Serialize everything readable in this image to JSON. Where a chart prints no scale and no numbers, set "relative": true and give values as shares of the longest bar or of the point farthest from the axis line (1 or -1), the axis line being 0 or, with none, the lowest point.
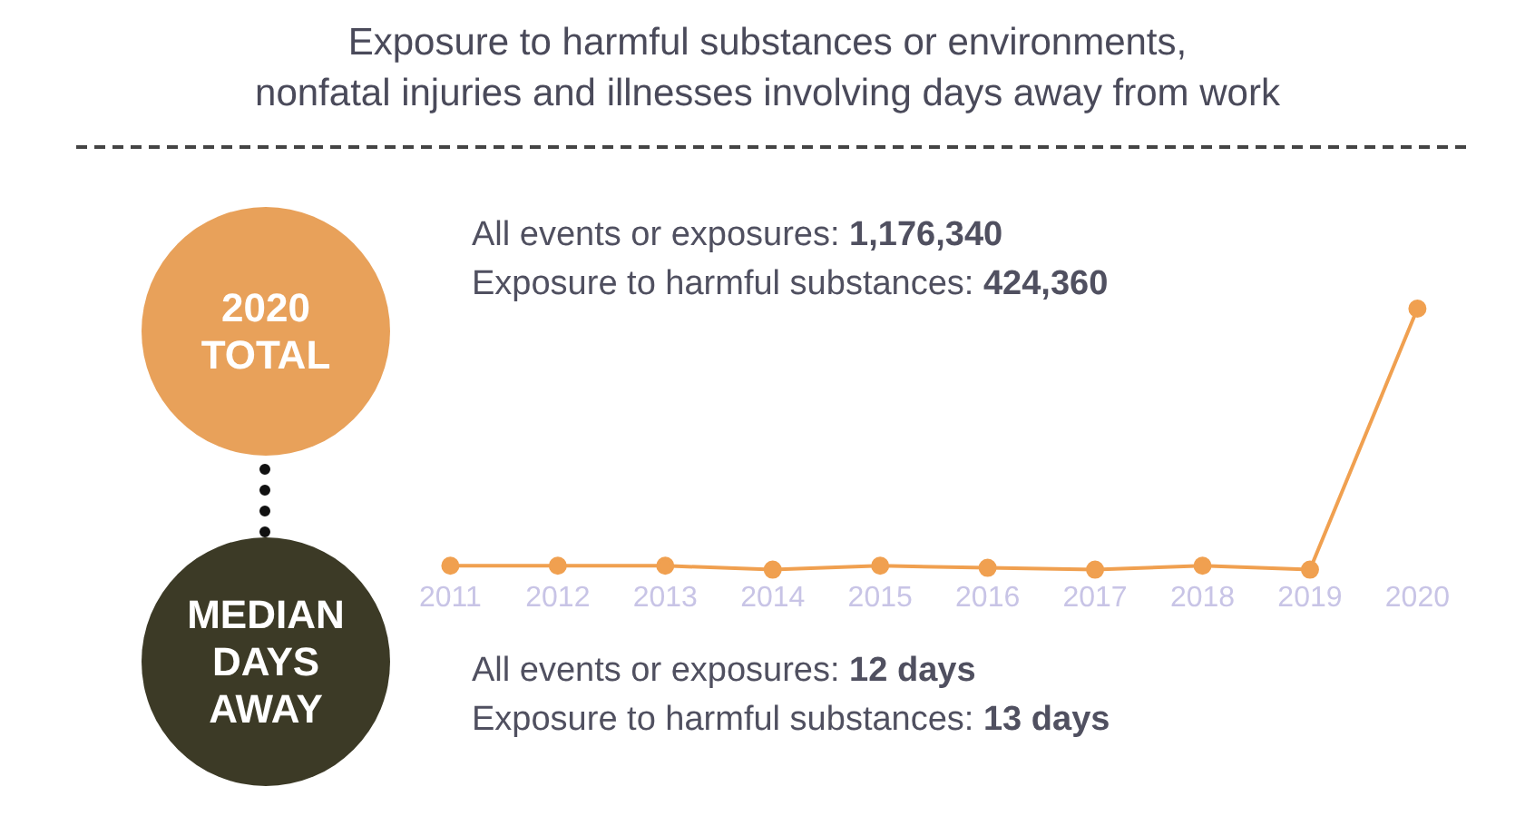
{
  "chart_data": {
    "type": "line",
    "title": "Exposure to harmful substances or environments,\nnonfatal injuries and illnesses involving days away from work",
    "categories": [
      "2011",
      "2012",
      "2013",
      "2014",
      "2015",
      "2016",
      "2017",
      "2018",
      "2019",
      "2020"
    ],
    "relative": true,
    "series": [
      {
        "color": "#f0a050",
        "values": [
          0.015,
          0.015,
          0.015,
          0,
          0.015,
          0.007,
          0,
          0.015,
          0,
          1
        ]
      }
    ],
    "marker": "circle",
    "grid": false,
    "legend": false,
    "tick_labels": "x",
    "annotations": [
      "2020 TOTAL",
      "All events or exposures: 1,176,340",
      "Exposure to harmful substances: 424,360",
      "MEDIAN DAYS AWAY",
      "All events or exposures: 12 days",
      "Exposure to harmful substances: 13 days"
    ]
  }
}
